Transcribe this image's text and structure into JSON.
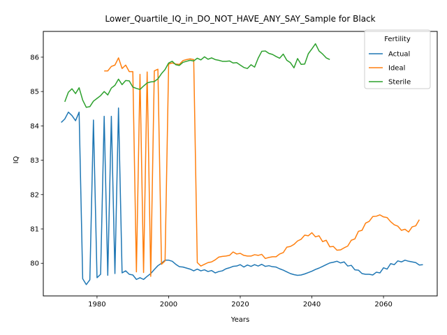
{
  "chart_data": {
    "type": "line",
    "title": "Lower_Quartile_IQ_in_DO_NOT_HAVE_ANY_SAY_Sample for Black",
    "xlabel": "Years",
    "ylabel": "IQ",
    "xlim": [
      1965,
      2075
    ],
    "ylim": [
      79.05,
      86.75
    ],
    "xticks": [
      1980,
      2000,
      2020,
      2040,
      2060
    ],
    "yticks": [
      80,
      81,
      82,
      83,
      84,
      85,
      86
    ],
    "grid": false,
    "legend": {
      "title": "Fertility",
      "position": "top-right"
    },
    "series": [
      {
        "name": "Actual",
        "color": "#1f77b4",
        "points": [
          [
            1970,
            84.1
          ],
          [
            1971,
            84.2
          ],
          [
            1972,
            84.4
          ],
          [
            1973,
            84.3
          ],
          [
            1974,
            84.15
          ],
          [
            1975,
            84.4
          ],
          [
            1976,
            79.55
          ],
          [
            1977,
            79.38
          ],
          [
            1978,
            79.52
          ],
          [
            1979,
            84.17
          ],
          [
            1980,
            79.58
          ],
          [
            1981,
            79.68
          ],
          [
            1982,
            84.28
          ],
          [
            1983,
            79.65
          ],
          [
            1984,
            84.28
          ],
          [
            1985,
            79.7
          ],
          [
            1986,
            84.52
          ],
          [
            1987,
            79.72
          ],
          [
            1988,
            79.78
          ],
          [
            1989,
            79.68
          ],
          [
            1990,
            79.66
          ],
          [
            1991,
            79.53
          ],
          [
            1992,
            79.58
          ],
          [
            1993,
            79.53
          ],
          [
            1994,
            79.62
          ],
          [
            1995,
            79.7
          ],
          [
            1996,
            79.82
          ],
          [
            1997,
            79.93
          ],
          [
            1998,
            80.0
          ],
          [
            1999,
            80.09
          ],
          [
            2000,
            80.09
          ],
          [
            2001,
            80.06
          ],
          [
            2002,
            79.97
          ],
          [
            2003,
            79.9
          ],
          [
            2004,
            79.89
          ],
          [
            2005,
            79.86
          ],
          [
            2006,
            79.83
          ],
          [
            2007,
            79.78
          ],
          [
            2008,
            79.83
          ],
          [
            2009,
            79.78
          ],
          [
            2010,
            79.81
          ],
          [
            2011,
            79.76
          ],
          [
            2012,
            79.79
          ],
          [
            2013,
            79.72
          ],
          [
            2014,
            79.76
          ],
          [
            2015,
            79.78
          ],
          [
            2016,
            79.84
          ],
          [
            2017,
            79.87
          ],
          [
            2018,
            79.91
          ],
          [
            2019,
            79.92
          ],
          [
            2020,
            79.96
          ],
          [
            2021,
            79.89
          ],
          [
            2022,
            79.95
          ],
          [
            2023,
            79.91
          ],
          [
            2024,
            79.96
          ],
          [
            2025,
            79.92
          ],
          [
            2026,
            79.97
          ],
          [
            2027,
            79.91
          ],
          [
            2028,
            79.93
          ],
          [
            2029,
            79.9
          ],
          [
            2030,
            79.89
          ],
          [
            2031,
            79.84
          ],
          [
            2032,
            79.8
          ],
          [
            2033,
            79.75
          ],
          [
            2034,
            79.7
          ],
          [
            2035,
            79.67
          ],
          [
            2036,
            79.65
          ],
          [
            2037,
            79.66
          ],
          [
            2038,
            79.69
          ],
          [
            2039,
            79.73
          ],
          [
            2040,
            79.77
          ],
          [
            2041,
            79.82
          ],
          [
            2042,
            79.86
          ],
          [
            2043,
            79.91
          ],
          [
            2044,
            79.96
          ],
          [
            2045,
            80.01
          ],
          [
            2046,
            80.03
          ],
          [
            2047,
            80.06
          ],
          [
            2048,
            80.01
          ],
          [
            2049,
            80.04
          ],
          [
            2050,
            79.92
          ],
          [
            2051,
            79.94
          ],
          [
            2052,
            79.81
          ],
          [
            2053,
            79.8
          ],
          [
            2054,
            79.7
          ],
          [
            2055,
            79.68
          ],
          [
            2056,
            79.68
          ],
          [
            2057,
            79.66
          ],
          [
            2058,
            79.74
          ],
          [
            2059,
            79.72
          ],
          [
            2060,
            79.87
          ],
          [
            2061,
            79.83
          ],
          [
            2062,
            79.99
          ],
          [
            2063,
            79.96
          ],
          [
            2064,
            80.07
          ],
          [
            2065,
            80.04
          ],
          [
            2066,
            80.09
          ],
          [
            2067,
            80.06
          ],
          [
            2068,
            80.04
          ],
          [
            2069,
            80.02
          ],
          [
            2070,
            79.95
          ],
          [
            2071,
            79.96
          ]
        ]
      },
      {
        "name": "Ideal",
        "color": "#ff7f0e",
        "points": [
          [
            1982,
            85.6
          ],
          [
            1983,
            85.6
          ],
          [
            1984,
            85.73
          ],
          [
            1985,
            85.77
          ],
          [
            1986,
            85.98
          ],
          [
            1987,
            85.67
          ],
          [
            1988,
            85.77
          ],
          [
            1989,
            85.58
          ],
          [
            1990,
            85.58
          ],
          [
            1991,
            79.75
          ],
          [
            1992,
            85.5
          ],
          [
            1993,
            79.73
          ],
          [
            1994,
            85.57
          ],
          [
            1995,
            79.62
          ],
          [
            1996,
            85.6
          ],
          [
            1997,
            85.65
          ],
          [
            1998,
            79.97
          ],
          [
            1999,
            80.07
          ],
          [
            2000,
            85.8
          ],
          [
            2001,
            85.83
          ],
          [
            2002,
            85.8
          ],
          [
            2003,
            85.79
          ],
          [
            2004,
            85.9
          ],
          [
            2005,
            85.93
          ],
          [
            2006,
            85.95
          ],
          [
            2007,
            85.93
          ],
          [
            2008,
            80.02
          ],
          [
            2009,
            79.92
          ],
          [
            2010,
            79.97
          ],
          [
            2011,
            80.02
          ],
          [
            2012,
            80.04
          ],
          [
            2013,
            80.1
          ],
          [
            2014,
            80.18
          ],
          [
            2015,
            80.2
          ],
          [
            2016,
            80.21
          ],
          [
            2017,
            80.23
          ],
          [
            2018,
            80.33
          ],
          [
            2019,
            80.27
          ],
          [
            2020,
            80.29
          ],
          [
            2021,
            80.23
          ],
          [
            2022,
            80.21
          ],
          [
            2023,
            80.21
          ],
          [
            2024,
            80.25
          ],
          [
            2025,
            80.23
          ],
          [
            2026,
            80.26
          ],
          [
            2027,
            80.14
          ],
          [
            2028,
            80.17
          ],
          [
            2029,
            80.19
          ],
          [
            2030,
            80.19
          ],
          [
            2031,
            80.27
          ],
          [
            2032,
            80.31
          ],
          [
            2033,
            80.47
          ],
          [
            2034,
            80.49
          ],
          [
            2035,
            80.55
          ],
          [
            2036,
            80.65
          ],
          [
            2037,
            80.7
          ],
          [
            2038,
            80.82
          ],
          [
            2039,
            80.8
          ],
          [
            2040,
            80.89
          ],
          [
            2041,
            80.77
          ],
          [
            2042,
            80.8
          ],
          [
            2043,
            80.63
          ],
          [
            2044,
            80.67
          ],
          [
            2045,
            80.48
          ],
          [
            2046,
            80.49
          ],
          [
            2047,
            80.38
          ],
          [
            2048,
            80.39
          ],
          [
            2049,
            80.45
          ],
          [
            2050,
            80.5
          ],
          [
            2051,
            80.67
          ],
          [
            2052,
            80.71
          ],
          [
            2053,
            80.93
          ],
          [
            2054,
            80.96
          ],
          [
            2055,
            81.17
          ],
          [
            2056,
            81.22
          ],
          [
            2057,
            81.36
          ],
          [
            2058,
            81.37
          ],
          [
            2059,
            81.41
          ],
          [
            2060,
            81.35
          ],
          [
            2061,
            81.33
          ],
          [
            2062,
            81.21
          ],
          [
            2063,
            81.12
          ],
          [
            2064,
            81.08
          ],
          [
            2065,
            80.96
          ],
          [
            2066,
            80.99
          ],
          [
            2067,
            80.91
          ],
          [
            2068,
            81.06
          ],
          [
            2069,
            81.09
          ],
          [
            2070,
            81.27
          ]
        ]
      },
      {
        "name": "Sterile",
        "color": "#2ca02c",
        "points": [
          [
            1971,
            84.7
          ],
          [
            1972,
            84.98
          ],
          [
            1973,
            85.08
          ],
          [
            1974,
            84.94
          ],
          [
            1975,
            85.11
          ],
          [
            1976,
            84.75
          ],
          [
            1977,
            84.54
          ],
          [
            1978,
            84.56
          ],
          [
            1979,
            84.72
          ],
          [
            1980,
            84.8
          ],
          [
            1981,
            84.88
          ],
          [
            1982,
            85.0
          ],
          [
            1983,
            84.9
          ],
          [
            1984,
            85.1
          ],
          [
            1985,
            85.18
          ],
          [
            1986,
            85.36
          ],
          [
            1987,
            85.2
          ],
          [
            1988,
            85.32
          ],
          [
            1989,
            85.31
          ],
          [
            1990,
            85.13
          ],
          [
            1991,
            85.09
          ],
          [
            1992,
            85.06
          ],
          [
            1993,
            85.16
          ],
          [
            1994,
            85.25
          ],
          [
            1995,
            85.28
          ],
          [
            1996,
            85.29
          ],
          [
            1997,
            85.37
          ],
          [
            1998,
            85.52
          ],
          [
            1999,
            85.64
          ],
          [
            2000,
            85.83
          ],
          [
            2001,
            85.88
          ],
          [
            2002,
            85.78
          ],
          [
            2003,
            85.76
          ],
          [
            2004,
            85.85
          ],
          [
            2005,
            85.88
          ],
          [
            2006,
            85.91
          ],
          [
            2007,
            85.89
          ],
          [
            2008,
            85.97
          ],
          [
            2009,
            85.92
          ],
          [
            2010,
            86.01
          ],
          [
            2011,
            85.94
          ],
          [
            2012,
            85.98
          ],
          [
            2013,
            85.93
          ],
          [
            2014,
            85.91
          ],
          [
            2015,
            85.88
          ],
          [
            2016,
            85.88
          ],
          [
            2017,
            85.89
          ],
          [
            2018,
            85.83
          ],
          [
            2019,
            85.84
          ],
          [
            2020,
            85.77
          ],
          [
            2021,
            85.7
          ],
          [
            2022,
            85.67
          ],
          [
            2023,
            85.78
          ],
          [
            2024,
            85.71
          ],
          [
            2025,
            85.97
          ],
          [
            2026,
            86.17
          ],
          [
            2027,
            86.18
          ],
          [
            2028,
            86.11
          ],
          [
            2029,
            86.08
          ],
          [
            2030,
            86.02
          ],
          [
            2031,
            85.97
          ],
          [
            2032,
            86.09
          ],
          [
            2033,
            85.91
          ],
          [
            2034,
            85.84
          ],
          [
            2035,
            85.69
          ],
          [
            2036,
            85.96
          ],
          [
            2037,
            85.79
          ],
          [
            2038,
            85.8
          ],
          [
            2039,
            86.1
          ],
          [
            2040,
            86.24
          ],
          [
            2041,
            86.39
          ],
          [
            2042,
            86.18
          ],
          [
            2043,
            86.09
          ],
          [
            2044,
            85.98
          ],
          [
            2045,
            85.93
          ]
        ]
      }
    ]
  }
}
